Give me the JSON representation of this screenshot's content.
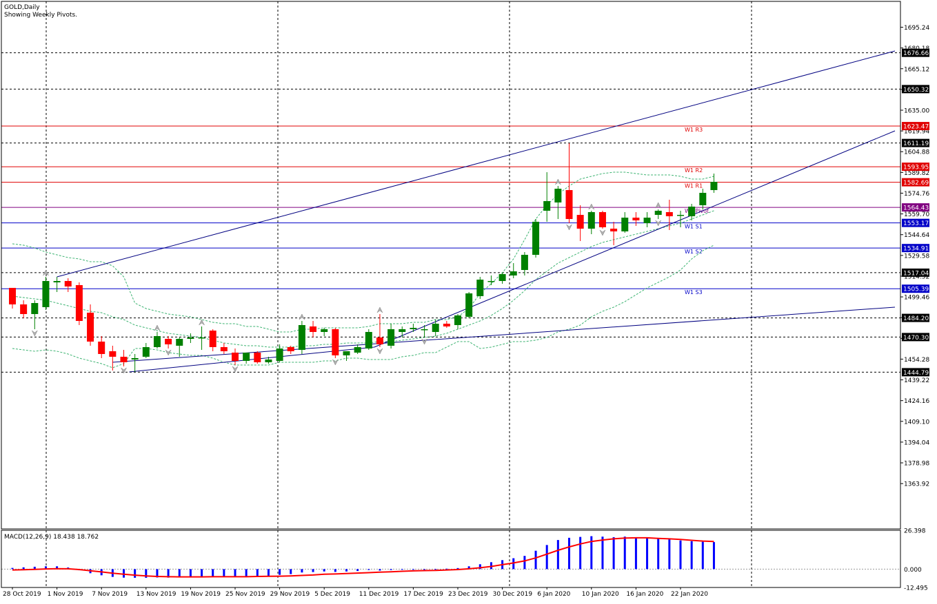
{
  "header": {
    "symbol_line": "GOLD,Daily",
    "subtitle": "Showing Weekly Pivots."
  },
  "macd": {
    "label": "MACD(12,26,9) 18.438 18.762",
    "axis_labels": [
      "26.398",
      "0.000",
      "-12.495"
    ],
    "ylim": [
      -12.495,
      26.398
    ]
  },
  "price_axis": {
    "ylim": [
      1331,
      1714
    ],
    "tick_labels": [
      "1695.24",
      "1680.18",
      "1665.12",
      "1650.06",
      "1635.00",
      "1619.94",
      "1604.88",
      "1589.82",
      "1574.76",
      "1559.70",
      "1544.64",
      "1529.58",
      "1514.52",
      "1499.46",
      "1484.40",
      "1469.34",
      "1454.28",
      "1439.22",
      "1424.16",
      "1409.10",
      "1394.04",
      "1378.98",
      "1363.92"
    ]
  },
  "date_labels": [
    {
      "i": 0,
      "text": "28 Oct 2019"
    },
    {
      "i": 4,
      "text": "1 Nov 2019"
    },
    {
      "i": 8,
      "text": "7 Nov 2019"
    },
    {
      "i": 12,
      "text": "13 Nov 2019"
    },
    {
      "i": 16,
      "text": "19 Nov 2019"
    },
    {
      "i": 20,
      "text": "25 Nov 2019"
    },
    {
      "i": 24,
      "text": "29 Nov 2019"
    },
    {
      "i": 28,
      "text": "5 Dec 2019"
    },
    {
      "i": 32,
      "text": "11 Dec 2019"
    },
    {
      "i": 36,
      "text": "17 Dec 2019"
    },
    {
      "i": 40,
      "text": "23 Dec 2019"
    },
    {
      "i": 44,
      "text": "30 Dec 2019"
    },
    {
      "i": 48,
      "text": "6 Jan 2020"
    },
    {
      "i": 52,
      "text": "10 Jan 2020"
    },
    {
      "i": 56,
      "text": "16 Jan 2020"
    },
    {
      "i": 60,
      "text": "22 Jan 2020"
    }
  ],
  "horizontal_levels": [
    {
      "price": 1676.66,
      "label": "1676.66",
      "style": "dotted-black"
    },
    {
      "price": 1650.32,
      "label": "1650.32",
      "style": "dotted-black"
    },
    {
      "price": 1611.19,
      "label": "1611.19",
      "style": "dotted-black"
    },
    {
      "price": 1517.04,
      "label": "1517.04",
      "style": "dotted-black"
    },
    {
      "price": 1484.2,
      "label": "1484.20",
      "style": "dotted-black"
    },
    {
      "price": 1470.3,
      "label": "1470.30",
      "style": "dotted-black"
    },
    {
      "price": 1444.79,
      "label": "1444.79",
      "style": "dotted-black"
    }
  ],
  "pivots": [
    {
      "name": "W1 R3",
      "price": 1623.47,
      "label": "1623.47",
      "color": "#e00000"
    },
    {
      "name": "W1 R2",
      "price": 1593.95,
      "label": "1593.95",
      "color": "#e00000"
    },
    {
      "name": "W1 R1",
      "price": 1582.69,
      "label": "1582.69",
      "color": "#e00000"
    },
    {
      "name": "W1 Pivot",
      "price": 1564.43,
      "label": "1564.43",
      "color": "#800080"
    },
    {
      "name": "W1 S1",
      "price": 1553.17,
      "label": "1553.17",
      "color": "#0000c8"
    },
    {
      "name": "W1 S2",
      "price": 1534.91,
      "label": "1534.91",
      "color": "#0000c8"
    },
    {
      "name": "W1 S3",
      "price": 1505.39,
      "label": "1505.39",
      "color": "#0000c8"
    }
  ],
  "colors": {
    "bull": "#008000",
    "bear": "#ff0000",
    "channel": "#000080",
    "bollinger": "#3cb371",
    "macd_hist": "#0000ff",
    "macd_signal": "#ff0000",
    "grid": "#000000"
  },
  "chart_data": {
    "type": "candlestick",
    "title": "GOLD,Daily",
    "ylim": [
      1331,
      1714
    ],
    "candles": [
      {
        "o": 1506,
        "h": 1506,
        "l": 1491,
        "c": 1494
      },
      {
        "o": 1494,
        "h": 1497,
        "l": 1484,
        "c": 1487
      },
      {
        "o": 1487,
        "h": 1497,
        "l": 1476,
        "c": 1495
      },
      {
        "o": 1492,
        "h": 1514,
        "l": 1490,
        "c": 1511
      },
      {
        "o": 1510,
        "h": 1514,
        "l": 1503,
        "c": 1511
      },
      {
        "o": 1511,
        "h": 1513,
        "l": 1503,
        "c": 1507
      },
      {
        "o": 1508,
        "h": 1510,
        "l": 1479,
        "c": 1482
      },
      {
        "o": 1488,
        "h": 1494,
        "l": 1464,
        "c": 1467
      },
      {
        "o": 1467,
        "h": 1471,
        "l": 1455,
        "c": 1458
      },
      {
        "o": 1460,
        "h": 1464,
        "l": 1446,
        "c": 1456
      },
      {
        "o": 1456,
        "h": 1461,
        "l": 1449,
        "c": 1452
      },
      {
        "o": 1454,
        "h": 1458,
        "l": 1445,
        "c": 1455
      },
      {
        "o": 1456,
        "h": 1466,
        "l": 1455,
        "c": 1463
      },
      {
        "o": 1463,
        "h": 1474,
        "l": 1462,
        "c": 1471
      },
      {
        "o": 1469,
        "h": 1471,
        "l": 1462,
        "c": 1465
      },
      {
        "o": 1464,
        "h": 1470,
        "l": 1456,
        "c": 1469
      },
      {
        "o": 1469,
        "h": 1473,
        "l": 1466,
        "c": 1470
      },
      {
        "o": 1470,
        "h": 1478,
        "l": 1461,
        "c": 1470
      },
      {
        "o": 1475,
        "h": 1476,
        "l": 1460,
        "c": 1463
      },
      {
        "o": 1463,
        "h": 1466,
        "l": 1458,
        "c": 1460
      },
      {
        "o": 1459,
        "h": 1462,
        "l": 1450,
        "c": 1453
      },
      {
        "o": 1453,
        "h": 1459,
        "l": 1451,
        "c": 1459
      },
      {
        "o": 1459,
        "h": 1460,
        "l": 1451,
        "c": 1452
      },
      {
        "o": 1452,
        "h": 1456,
        "l": 1451,
        "c": 1454
      },
      {
        "o": 1453,
        "h": 1465,
        "l": 1452,
        "c": 1462
      },
      {
        "o": 1463,
        "h": 1464,
        "l": 1458,
        "c": 1460
      },
      {
        "o": 1461,
        "h": 1482,
        "l": 1458,
        "c": 1479
      },
      {
        "o": 1478,
        "h": 1482,
        "l": 1470,
        "c": 1474
      },
      {
        "o": 1474,
        "h": 1477,
        "l": 1471,
        "c": 1476
      },
      {
        "o": 1476,
        "h": 1477,
        "l": 1455,
        "c": 1457
      },
      {
        "o": 1457,
        "h": 1460,
        "l": 1453,
        "c": 1460
      },
      {
        "o": 1459,
        "h": 1465,
        "l": 1458,
        "c": 1463
      },
      {
        "o": 1462,
        "h": 1476,
        "l": 1461,
        "c": 1474
      },
      {
        "o": 1470,
        "h": 1487,
        "l": 1463,
        "c": 1465
      },
      {
        "o": 1464,
        "h": 1480,
        "l": 1462,
        "c": 1476
      },
      {
        "o": 1474,
        "h": 1478,
        "l": 1470,
        "c": 1476
      },
      {
        "o": 1476,
        "h": 1480,
        "l": 1474,
        "c": 1477
      },
      {
        "o": 1476,
        "h": 1479,
        "l": 1470,
        "c": 1476
      },
      {
        "o": 1474,
        "h": 1483,
        "l": 1471,
        "c": 1480
      },
      {
        "o": 1480,
        "h": 1482,
        "l": 1477,
        "c": 1478
      },
      {
        "o": 1479,
        "h": 1487,
        "l": 1476,
        "c": 1486
      },
      {
        "o": 1485,
        "h": 1503,
        "l": 1484,
        "c": 1502
      },
      {
        "o": 1500,
        "h": 1514,
        "l": 1498,
        "c": 1512
      },
      {
        "o": 1511,
        "h": 1515,
        "l": 1508,
        "c": 1511
      },
      {
        "o": 1511,
        "h": 1517,
        "l": 1509,
        "c": 1516
      },
      {
        "o": 1515,
        "h": 1524,
        "l": 1513,
        "c": 1518
      },
      {
        "o": 1519,
        "h": 1532,
        "l": 1515,
        "c": 1530
      },
      {
        "o": 1530,
        "h": 1556,
        "l": 1528,
        "c": 1554
      },
      {
        "o": 1562,
        "h": 1590,
        "l": 1554,
        "c": 1569
      },
      {
        "o": 1568,
        "h": 1580,
        "l": 1556,
        "c": 1578
      },
      {
        "o": 1577,
        "h": 1611,
        "l": 1553,
        "c": 1556
      },
      {
        "o": 1559,
        "h": 1566,
        "l": 1540,
        "c": 1549
      },
      {
        "o": 1549,
        "h": 1562,
        "l": 1545,
        "c": 1561
      },
      {
        "o": 1561,
        "h": 1562,
        "l": 1549,
        "c": 1550
      },
      {
        "o": 1549,
        "h": 1554,
        "l": 1537,
        "c": 1547
      },
      {
        "o": 1547,
        "h": 1561,
        "l": 1546,
        "c": 1557
      },
      {
        "o": 1557,
        "h": 1561,
        "l": 1551,
        "c": 1555
      },
      {
        "o": 1553,
        "h": 1561,
        "l": 1550,
        "c": 1557
      },
      {
        "o": 1559,
        "h": 1563,
        "l": 1556,
        "c": 1562
      },
      {
        "o": 1561,
        "h": 1570,
        "l": 1548,
        "c": 1558
      },
      {
        "o": 1559,
        "h": 1562,
        "l": 1550,
        "c": 1559
      },
      {
        "o": 1558,
        "h": 1567,
        "l": 1555,
        "c": 1565
      },
      {
        "o": 1566,
        "h": 1578,
        "l": 1563,
        "c": 1575
      },
      {
        "o": 1577,
        "h": 1589,
        "l": 1575,
        "c": 1583
      }
    ],
    "bollinger": {
      "upper": [
        1538,
        1537,
        1535,
        1532,
        1530,
        1528,
        1527,
        1525,
        1525,
        1522,
        1514,
        1495,
        1491,
        1489,
        1487,
        1486,
        1485,
        1483,
        1481,
        1480,
        1480,
        1478,
        1478,
        1476,
        1474,
        1474,
        1476,
        1476,
        1477,
        1477,
        1477,
        1477,
        1478,
        1480,
        1480,
        1480,
        1481,
        1481,
        1483,
        1483,
        1485,
        1491,
        1502,
        1509,
        1517,
        1527,
        1541,
        1556,
        1566,
        1574,
        1580,
        1585,
        1587,
        1589,
        1590,
        1590,
        1589,
        1588,
        1588,
        1588,
        1587,
        1585,
        1585,
        1587
      ],
      "middle": [
        1500,
        1499,
        1498,
        1497,
        1495,
        1493,
        1491,
        1489,
        1488,
        1485,
        1483,
        1479,
        1477,
        1475,
        1473,
        1472,
        1471,
        1470,
        1468,
        1466,
        1465,
        1464,
        1464,
        1463,
        1463,
        1463,
        1464,
        1464,
        1465,
        1465,
        1466,
        1466,
        1466,
        1467,
        1467,
        1468,
        1469,
        1470,
        1471,
        1473,
        1476,
        1479,
        1482,
        1486,
        1491,
        1497,
        1504,
        1512,
        1518,
        1524,
        1528,
        1532,
        1536,
        1539,
        1541,
        1543,
        1545,
        1547,
        1549,
        1551,
        1553,
        1556,
        1559,
        1562
      ],
      "lower": [
        1462,
        1461,
        1460,
        1461,
        1460,
        1458,
        1455,
        1453,
        1451,
        1448,
        1451,
        1462,
        1462,
        1461,
        1459,
        1458,
        1457,
        1457,
        1455,
        1452,
        1450,
        1450,
        1450,
        1450,
        1452,
        1452,
        1452,
        1452,
        1453,
        1453,
        1455,
        1455,
        1454,
        1454,
        1454,
        1456,
        1457,
        1459,
        1459,
        1463,
        1467,
        1467,
        1462,
        1463,
        1465,
        1467,
        1467,
        1468,
        1470,
        1474,
        1476,
        1479,
        1485,
        1489,
        1492,
        1496,
        1501,
        1506,
        1510,
        1514,
        1519,
        1527,
        1533,
        1537
      ]
    },
    "macd": {
      "histogram": [
        0.8,
        1.2,
        1.6,
        1.9,
        1.9,
        1.1,
        -0.8,
        -2.8,
        -4.2,
        -5.3,
        -5.8,
        -5.9,
        -5.9,
        -5.7,
        -5.8,
        -5.7,
        -5.5,
        -5.2,
        -5.0,
        -5.1,
        -5.1,
        -4.9,
        -4.7,
        -4.6,
        -3.9,
        -3.4,
        -2.3,
        -2.0,
        -1.6,
        -1.9,
        -1.6,
        -1.3,
        -0.6,
        -1.0,
        -0.6,
        -0.3,
        -0.1,
        -0.1,
        0.1,
        0.3,
        0.7,
        1.9,
        3.3,
        4.7,
        6.1,
        7.4,
        9.0,
        12.5,
        16.4,
        19.8,
        21.3,
        21.9,
        22.4,
        22.1,
        21.7,
        22.1,
        21.6,
        21.0,
        20.7,
        20.3,
        19.5,
        19.0,
        18.6,
        18.4
      ],
      "signal": [
        -0.6,
        -0.4,
        -0.2,
        0.1,
        0.3,
        0.2,
        -0.3,
        -1.1,
        -1.9,
        -2.8,
        -3.5,
        -4.1,
        -4.6,
        -5.0,
        -5.2,
        -5.3,
        -5.3,
        -5.3,
        -5.2,
        -5.2,
        -5.2,
        -5.2,
        -5.0,
        -4.9,
        -4.8,
        -4.6,
        -4.3,
        -4.0,
        -3.5,
        -3.3,
        -3.0,
        -2.7,
        -2.4,
        -2.1,
        -1.8,
        -1.5,
        -1.2,
        -1.0,
        -0.9,
        -0.6,
        -0.3,
        0.2,
        0.9,
        1.8,
        3.0,
        4.2,
        5.6,
        7.6,
        10.2,
        12.8,
        15.1,
        17.1,
        18.8,
        19.8,
        20.6,
        21.1,
        21.3,
        21.3,
        20.9,
        20.6,
        20.2,
        19.6,
        19.1,
        18.8
      ]
    }
  }
}
